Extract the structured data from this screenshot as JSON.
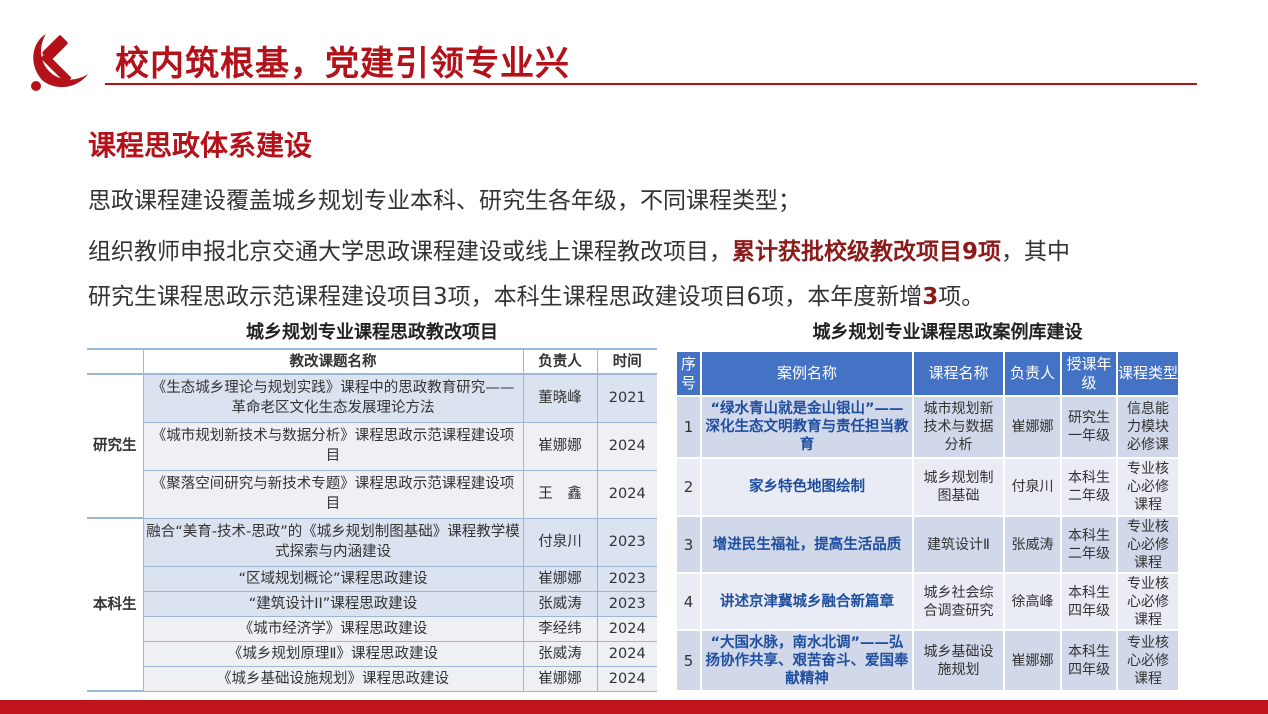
{
  "header": {
    "title": "校内筑根基，党建引领专业兴",
    "logo_icon": "hammer-sickle-icon",
    "accent": "#b3121a"
  },
  "section": {
    "subtitle": "课程思政体系建设"
  },
  "paragraph": {
    "line1": "思政课程建设覆盖城乡规划专业本科、研究生各年级，不同课程类型；",
    "line2_a": "组织教师申报北京交通大学思政课程建设或线上课程教改项目，",
    "line2_highlight": "累计获批校级教改项目9项",
    "line2_b": "，其中",
    "line3_a": "研究生课程思政示范课程建设项目3项，本科生课程思政建设项目6项，本年度新增",
    "line3_highlight": "3",
    "line3_b": "项。"
  },
  "left_table": {
    "title": "城乡规划专业课程思政教改项目",
    "headers": [
      "",
      "教改课题名称",
      "负责人",
      "时间"
    ],
    "groups": [
      {
        "label": "研究生",
        "rows": [
          {
            "name": "《生态城乡理论与规划实践》课程中的思政教育研究——革命老区文化生态发展理论方法",
            "lead": "董晓峰",
            "year": "2021"
          },
          {
            "name": "《城市规划新技术与数据分析》课程思政示范课程建设项目",
            "lead": "崔娜娜",
            "year": "2024"
          },
          {
            "name": "《聚落空间研究与新技术专题》课程思政示范课程建设项目",
            "lead": "王　鑫",
            "year": "2024"
          }
        ]
      },
      {
        "label": "本科生",
        "rows": [
          {
            "name": "融合“美育-技术-思政”的《城乡规划制图基础》课程教学模式探索与内涵建设",
            "lead": "付泉川",
            "year": "2023"
          },
          {
            "name": "“区域规划概论”课程思政建设",
            "lead": "崔娜娜",
            "year": "2023"
          },
          {
            "name": "“建筑设计II”课程思政建设",
            "lead": "张威涛",
            "year": "2023"
          },
          {
            "name": "《城市经济学》课程思政建设",
            "lead": "李经纬",
            "year": "2024"
          },
          {
            "name": "《城乡规划原理Ⅱ》课程思政建设",
            "lead": "张威涛",
            "year": "2024"
          },
          {
            "name": "《城乡基础设施规划》课程思政建设",
            "lead": "崔娜娜",
            "year": "2024"
          }
        ]
      }
    ]
  },
  "right_table": {
    "title": "城乡规划专业课程思政案例库建设",
    "headers": [
      "序号",
      "案例名称",
      "课程名称",
      "负责人",
      "授课年级",
      "课程类型"
    ],
    "rows": [
      {
        "no": "1",
        "case": "“绿水青山就是金山银山”——深化生态文明教育与责任担当教育",
        "course": "城市规划新技术与数据分析",
        "lead": "崔娜娜",
        "grade": "研究生一年级",
        "type": "信息能力模块必修课"
      },
      {
        "no": "2",
        "case": "家乡特色地图绘制",
        "course": "城乡规划制图基础",
        "lead": "付泉川",
        "grade": "本科生二年级",
        "type": "专业核心必修课程"
      },
      {
        "no": "3",
        "case": "增进民生福祉，提高生活品质",
        "course": "建筑设计Ⅱ",
        "lead": "张威涛",
        "grade": "本科生二年级",
        "type": "专业核心必修课程"
      },
      {
        "no": "4",
        "case": "讲述京津冀城乡融合新篇章",
        "course": "城乡社会综合调查研究",
        "lead": "徐高峰",
        "grade": "本科生四年级",
        "type": "专业核心必修课程"
      },
      {
        "no": "5",
        "case": "“大国水脉，南水北调”——弘扬协作共享、艰苦奋斗、爱国奉献精神",
        "course": "城乡基础设施规划",
        "lead": "崔娜娜",
        "grade": "本科生四年级",
        "type": "专业核心必修课程"
      }
    ]
  }
}
